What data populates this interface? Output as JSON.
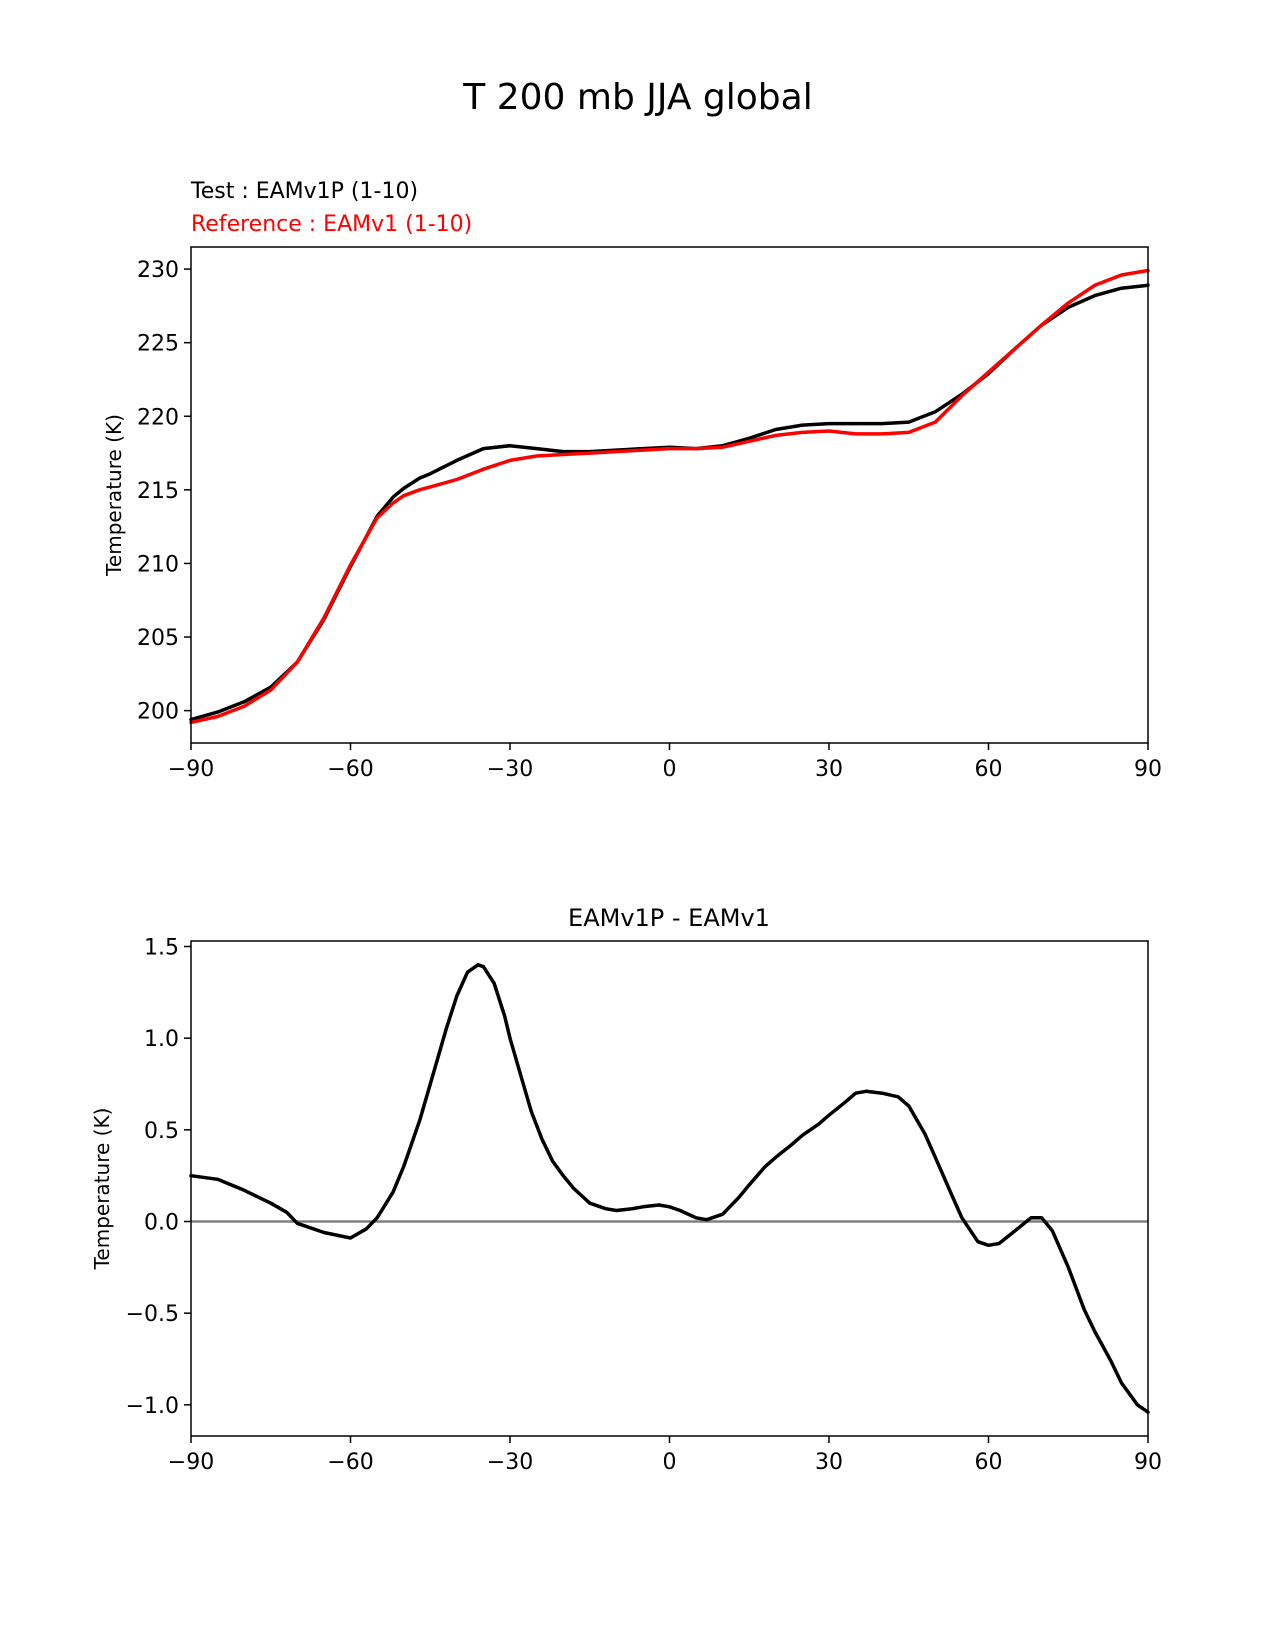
{
  "figure": {
    "title": "T 200 mb JJA global"
  },
  "chart_data": [
    {
      "type": "line",
      "test_label": "Test : EAMv1P (1-10)",
      "reference_label": "Reference : EAMv1 (1-10)",
      "ylabel": "Temperature (K)",
      "xlim": [
        -90,
        90
      ],
      "ylim": [
        197.8,
        231.5
      ],
      "xticks": [
        -90,
        -60,
        -30,
        0,
        30,
        60,
        90
      ],
      "xtick_labels": [
        "−90",
        "−60",
        "−30",
        "0",
        "30",
        "60",
        "90"
      ],
      "yticks": [
        200,
        205,
        210,
        215,
        220,
        225,
        230
      ],
      "ytick_labels": [
        "200",
        "205",
        "210",
        "215",
        "220",
        "225",
        "230"
      ],
      "grid": false,
      "series": [
        {
          "name": "EAMv1P",
          "color": "#000000",
          "x": [
            -90,
            -85,
            -80,
            -75,
            -70,
            -65,
            -60,
            -55,
            -52,
            -50,
            -47,
            -45,
            -40,
            -35,
            -30,
            -25,
            -20,
            -15,
            -10,
            -5,
            0,
            5,
            10,
            15,
            20,
            25,
            30,
            35,
            40,
            45,
            50,
            55,
            60,
            65,
            70,
            75,
            80,
            85,
            90
          ],
          "y": [
            199.4,
            199.9,
            200.6,
            201.6,
            203.3,
            206.2,
            209.8,
            213.2,
            214.5,
            215.1,
            215.8,
            216.1,
            217.0,
            217.8,
            218.0,
            217.8,
            217.6,
            217.6,
            217.7,
            217.8,
            217.9,
            217.8,
            218.0,
            218.5,
            219.1,
            219.4,
            219.5,
            219.5,
            219.5,
            219.6,
            220.3,
            221.5,
            222.9,
            224.6,
            226.2,
            227.4,
            228.2,
            228.7,
            228.9
          ]
        },
        {
          "name": "EAMv1",
          "color": "#ff0000",
          "x": [
            -90,
            -85,
            -80,
            -75,
            -70,
            -65,
            -60,
            -55,
            -52,
            -50,
            -47,
            -45,
            -40,
            -35,
            -30,
            -25,
            -20,
            -15,
            -10,
            -5,
            0,
            5,
            10,
            15,
            20,
            25,
            30,
            35,
            40,
            45,
            50,
            55,
            60,
            65,
            70,
            75,
            80,
            85,
            90
          ],
          "y": [
            199.2,
            199.6,
            200.3,
            201.4,
            203.3,
            206.3,
            209.9,
            213.1,
            214.1,
            214.6,
            215.0,
            215.2,
            215.7,
            216.4,
            217.0,
            217.3,
            217.4,
            217.5,
            217.6,
            217.7,
            217.8,
            217.8,
            217.9,
            218.3,
            218.7,
            218.9,
            219.0,
            218.8,
            218.8,
            218.9,
            219.6,
            221.4,
            223.0,
            224.6,
            226.2,
            227.7,
            228.9,
            229.6,
            229.9
          ]
        }
      ]
    },
    {
      "type": "line",
      "title": "EAMv1P - EAMv1",
      "ylabel": "Temperature (K)",
      "xlim": [
        -90,
        90
      ],
      "ylim": [
        -1.17,
        1.53
      ],
      "xticks": [
        -90,
        -60,
        -30,
        0,
        30,
        60,
        90
      ],
      "xtick_labels": [
        "−90",
        "−60",
        "−30",
        "0",
        "30",
        "60",
        "90"
      ],
      "yticks": [
        -1.0,
        -0.5,
        0.0,
        0.5,
        1.0,
        1.5
      ],
      "ytick_labels": [
        "−1.0",
        "−0.5",
        "0.0",
        "0.5",
        "1.0",
        "1.5"
      ],
      "grid": false,
      "zero_line": {
        "value": 0,
        "color": "#808080"
      },
      "series": [
        {
          "name": "EAMv1P - EAMv1",
          "color": "#000000",
          "x": [
            -90,
            -85,
            -80,
            -75,
            -72,
            -70,
            -65,
            -60,
            -57,
            -55,
            -52,
            -50,
            -47,
            -45,
            -42,
            -40,
            -38,
            -36,
            -35,
            -33,
            -31,
            -30,
            -28,
            -26,
            -24,
            -22,
            -20,
            -18,
            -15,
            -12,
            -10,
            -7,
            -5,
            -2,
            0,
            2,
            5,
            7,
            10,
            13,
            15,
            18,
            20,
            23,
            25,
            28,
            30,
            33,
            35,
            37,
            40,
            43,
            45,
            48,
            50,
            53,
            55,
            58,
            60,
            62,
            65,
            68,
            70,
            72,
            75,
            78,
            80,
            83,
            85,
            88,
            90
          ],
          "y": [
            0.25,
            0.23,
            0.17,
            0.1,
            0.05,
            -0.01,
            -0.06,
            -0.09,
            -0.04,
            0.02,
            0.16,
            0.3,
            0.55,
            0.75,
            1.05,
            1.23,
            1.36,
            1.4,
            1.39,
            1.3,
            1.12,
            1.0,
            0.8,
            0.6,
            0.45,
            0.33,
            0.25,
            0.18,
            0.1,
            0.07,
            0.06,
            0.07,
            0.08,
            0.09,
            0.08,
            0.06,
            0.02,
            0.01,
            0.04,
            0.13,
            0.2,
            0.3,
            0.35,
            0.42,
            0.47,
            0.53,
            0.58,
            0.65,
            0.7,
            0.71,
            0.7,
            0.68,
            0.63,
            0.48,
            0.35,
            0.15,
            0.02,
            -0.11,
            -0.13,
            -0.12,
            -0.05,
            0.02,
            0.02,
            -0.05,
            -0.25,
            -0.48,
            -0.6,
            -0.76,
            -0.88,
            -1.0,
            -1.04
          ]
        }
      ]
    }
  ]
}
